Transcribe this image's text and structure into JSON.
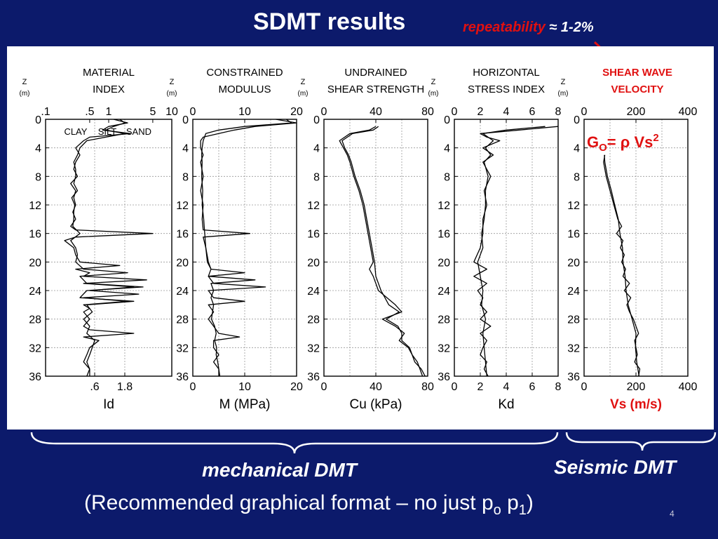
{
  "title": "SDMT results",
  "subtitle": {
    "highlight": "repeatability",
    "rest": " ≈ 1-2%"
  },
  "captions": {
    "mechanical": "mechanical DMT",
    "seismic": "Seismic DMT",
    "footnote_text": "(Recommended graphical format – no just p",
    "footnote_sub1": "o",
    "footnote_mid": " p",
    "footnote_sub2": "1",
    "footnote_end": ")"
  },
  "page_number": "4",
  "colors": {
    "background": "#0c1a6b",
    "accent": "#e01010",
    "panel": "#ffffff",
    "ink": "#000000"
  },
  "chart_data": [
    {
      "type": "line",
      "title_lines": [
        "MATERIAL",
        "INDEX"
      ],
      "xlabel": "Id",
      "axis_scale": "log",
      "xlim": [
        0.1,
        10
      ],
      "top_ticks": [
        {
          "v": 0.1,
          "label": ".1"
        },
        {
          "v": 0.5,
          "label": ".5"
        },
        {
          "v": 1,
          "label": "1"
        },
        {
          "v": 5,
          "label": "5"
        },
        {
          "v": 10,
          "label": "10"
        }
      ],
      "bottom_ticks": [
        {
          "v": 0.6,
          "label": ".6"
        },
        {
          "v": 1.8,
          "label": "1.8"
        }
      ],
      "ref_lines": [
        0.6,
        1.8
      ],
      "zone_labels": [
        {
          "v": 0.3,
          "label": "CLAY"
        },
        {
          "v": 0.95,
          "label": "SILT"
        },
        {
          "v": 3.0,
          "label": "SAND"
        }
      ],
      "ylabel": "Z",
      "yunit": "(m)",
      "ylim": [
        0,
        36
      ],
      "yticks": [
        0,
        4,
        8,
        12,
        16,
        20,
        24,
        28,
        32,
        36
      ],
      "series": [
        {
          "z": [
            0,
            0.5,
            1,
            1.5,
            2,
            2.5,
            3,
            4,
            5,
            6,
            7,
            8,
            9,
            10,
            11,
            12,
            13,
            14,
            15,
            15.5,
            16,
            16.5,
            17,
            18,
            19,
            20,
            20.5,
            21,
            21.5,
            22,
            22.5,
            23,
            23.5,
            24,
            24.5,
            25,
            25.5,
            26,
            26.5,
            27,
            28,
            29,
            29.5,
            30,
            30.5,
            31,
            32,
            33,
            34,
            35,
            36
          ],
          "v": [
            1.2,
            2.0,
            1.0,
            0.8,
            2.2,
            0.5,
            0.4,
            0.3,
            0.35,
            0.3,
            0.28,
            0.32,
            0.25,
            0.3,
            0.28,
            0.3,
            0.27,
            0.3,
            0.25,
            0.3,
            5.0,
            0.3,
            0.2,
            0.28,
            0.3,
            0.35,
            1.5,
            0.3,
            0.5,
            0.4,
            4.0,
            0.4,
            2.5,
            0.5,
            3.0,
            0.4,
            2.0,
            0.4,
            0.5,
            0.4,
            0.5,
            0.4,
            0.5,
            2.5,
            0.4,
            0.7,
            0.5,
            0.45,
            0.4,
            0.5,
            0.45
          ]
        },
        {
          "z": [
            0,
            0.5,
            1,
            1.5,
            2,
            3,
            4,
            5,
            6,
            7,
            8,
            9,
            10,
            11,
            12,
            13,
            14,
            15,
            16,
            17,
            18,
            19,
            20,
            21,
            21.5,
            22,
            23,
            23.5,
            24,
            25,
            25.5,
            26,
            27,
            28,
            29,
            30,
            31,
            32,
            33,
            34,
            35,
            36
          ],
          "v": [
            1.5,
            1.8,
            1.2,
            0.9,
            1.8,
            0.45,
            0.35,
            0.32,
            0.28,
            0.3,
            0.3,
            0.28,
            0.32,
            0.26,
            0.29,
            0.28,
            0.28,
            0.27,
            0.35,
            0.25,
            0.3,
            0.32,
            0.3,
            0.4,
            2.0,
            0.35,
            0.45,
            3.5,
            0.45,
            0.35,
            2.5,
            0.45,
            0.55,
            0.4,
            0.5,
            0.45,
            0.6,
            0.55,
            0.5,
            0.45,
            0.5,
            0.5
          ]
        }
      ]
    },
    {
      "type": "line",
      "title_lines": [
        "CONSTRAINED",
        "MODULUS"
      ],
      "xlabel": "M (MPa)",
      "axis_scale": "linear",
      "xlim": [
        0,
        20
      ],
      "top_ticks": [
        {
          "v": 0,
          "label": "0"
        },
        {
          "v": 10,
          "label": "10"
        },
        {
          "v": 20,
          "label": "20"
        }
      ],
      "bottom_ticks": [
        {
          "v": 0,
          "label": "0"
        },
        {
          "v": 10,
          "label": "10"
        },
        {
          "v": 20,
          "label": "20"
        }
      ],
      "gridlines": [
        5,
        10,
        15
      ],
      "ylabel": "Z",
      "yunit": "(m)",
      "ylim": [
        0,
        36
      ],
      "yticks": [
        0,
        4,
        8,
        12,
        16,
        20,
        24,
        28,
        32,
        36
      ],
      "series": [
        {
          "z": [
            0,
            0.5,
            1,
            1.5,
            2,
            2.5,
            3,
            4,
            5,
            6,
            8,
            10,
            12,
            14,
            15.5,
            16,
            16.5,
            18,
            20,
            21,
            21.5,
            22,
            23,
            23.5,
            24,
            25,
            25.5,
            26,
            27,
            28,
            29,
            30,
            30.5,
            31,
            32,
            33,
            34,
            35,
            36
          ],
          "v": [
            16,
            20,
            12,
            8,
            5,
            2,
            1.5,
            1.5,
            2,
            1.5,
            2,
            1.5,
            2,
            1.8,
            2,
            11,
            2,
            2.5,
            3,
            3.5,
            10,
            3,
            4,
            14,
            3,
            4,
            10,
            3,
            4,
            3,
            4,
            5,
            9,
            4,
            4,
            5,
            4,
            5,
            5
          ]
        },
        {
          "z": [
            0,
            0.5,
            1,
            1.5,
            2,
            3,
            4,
            5,
            6,
            8,
            10,
            12,
            14,
            16,
            18,
            20,
            21,
            22,
            22.5,
            23,
            24,
            25,
            26,
            27,
            28,
            29,
            30,
            31,
            32,
            33,
            34,
            35,
            36
          ],
          "v": [
            18,
            19,
            10,
            5,
            2.5,
            2,
            1.8,
            1.7,
            1.8,
            1.7,
            1.9,
            1.8,
            2.1,
            2.3,
            2.5,
            2.8,
            3.5,
            3,
            12,
            3.5,
            4,
            3.5,
            4,
            3.8,
            3.6,
            4.2,
            4.5,
            4.2,
            4.6,
            4.5,
            4.8,
            5,
            5.2
          ]
        }
      ]
    },
    {
      "type": "line",
      "title_lines": [
        "UNDRAINED",
        "SHEAR STRENGTH"
      ],
      "xlabel": "Cu (kPa)",
      "axis_scale": "linear",
      "xlim": [
        0,
        80
      ],
      "top_ticks": [
        {
          "v": 0,
          "label": "0"
        },
        {
          "v": 40,
          "label": "40"
        },
        {
          "v": 80,
          "label": "80"
        }
      ],
      "bottom_ticks": [
        {
          "v": 0,
          "label": "0"
        },
        {
          "v": 40,
          "label": "40"
        },
        {
          "v": 80,
          "label": "80"
        }
      ],
      "gridlines": [
        20,
        40,
        60
      ],
      "ylabel": "Z",
      "yunit": "(m)",
      "ylim": [
        0,
        36
      ],
      "yticks": [
        0,
        4,
        8,
        12,
        16,
        20,
        24,
        28,
        32,
        36
      ],
      "series": [
        {
          "z": [
            1,
            1.5,
            2,
            3,
            4,
            5,
            6,
            8,
            10,
            12,
            14,
            16,
            18,
            20,
            21,
            22,
            24,
            26,
            27,
            28,
            29,
            30,
            31,
            32,
            33,
            34,
            35,
            36
          ],
          "v": [
            40,
            35,
            20,
            12,
            15,
            18,
            20,
            23,
            27,
            30,
            32,
            34,
            36,
            38,
            35,
            38,
            42,
            55,
            60,
            45,
            55,
            62,
            58,
            65,
            68,
            70,
            75,
            78
          ]
        },
        {
          "z": [
            1,
            1.5,
            2,
            3,
            4,
            5,
            6,
            8,
            10,
            12,
            14,
            16,
            18,
            20,
            22,
            24,
            26,
            27,
            28,
            29,
            30,
            31,
            32,
            33,
            34,
            35,
            36
          ],
          "v": [
            42,
            38,
            22,
            14,
            16,
            19,
            21,
            24,
            28,
            31,
            33,
            35,
            37,
            39,
            40,
            44,
            50,
            58,
            48,
            57,
            60,
            60,
            66,
            68,
            72,
            74,
            76
          ]
        }
      ]
    },
    {
      "type": "line",
      "title_lines": [
        "HORIZONTAL",
        "STRESS INDEX"
      ],
      "xlabel": "Kd",
      "axis_scale": "linear",
      "xlim": [
        0,
        8
      ],
      "top_ticks": [
        {
          "v": 0,
          "label": "0"
        },
        {
          "v": 2,
          "label": "2"
        },
        {
          "v": 4,
          "label": "4"
        },
        {
          "v": 6,
          "label": "6"
        },
        {
          "v": 8,
          "label": "8"
        }
      ],
      "bottom_ticks": [
        {
          "v": 0,
          "label": "0"
        },
        {
          "v": 2,
          "label": "2"
        },
        {
          "v": 4,
          "label": "4"
        },
        {
          "v": 6,
          "label": "6"
        },
        {
          "v": 8,
          "label": "8"
        }
      ],
      "gridlines": [
        2,
        4,
        6
      ],
      "ylabel": "Z",
      "yunit": "(m)",
      "ylim": [
        0,
        36
      ],
      "yticks": [
        0,
        4,
        8,
        12,
        16,
        20,
        24,
        28,
        32,
        36
      ],
      "series": [
        {
          "z": [
            1,
            1.5,
            2,
            2.5,
            3,
            4,
            5,
            6,
            8,
            10,
            12,
            14,
            16,
            18,
            20,
            21,
            22,
            23,
            24,
            25,
            26,
            27,
            28,
            29,
            30,
            31,
            32,
            33,
            34,
            35,
            36
          ],
          "v": [
            8,
            5,
            2,
            2.5,
            3.5,
            2.2,
            3,
            2.2,
            2.8,
            2.3,
            2.5,
            2.2,
            2.2,
            2,
            1.5,
            2.5,
            1.5,
            2.5,
            1.8,
            2.2,
            2,
            2.5,
            2,
            2.8,
            2,
            2.5,
            2.2,
            2,
            2.5,
            2.3,
            2.6
          ]
        },
        {
          "z": [
            1,
            1.5,
            2,
            3,
            4,
            5,
            6,
            8,
            10,
            12,
            14,
            16,
            18,
            20,
            22,
            24,
            26,
            28,
            30,
            32,
            34,
            36
          ],
          "v": [
            7,
            4,
            2.2,
            3,
            2.4,
            2.8,
            2.3,
            2.6,
            2.4,
            2.4,
            2.3,
            2.1,
            2.2,
            1.8,
            2,
            2.2,
            2.1,
            2.4,
            2.2,
            2.3,
            2.4,
            2.5
          ]
        }
      ]
    },
    {
      "type": "line",
      "title_lines": [
        "SHEAR WAVE",
        "VELOCITY"
      ],
      "title_color": "#e01010",
      "xlabel": "Vs (m/s)",
      "xlabel_color": "#e01010",
      "axis_scale": "linear",
      "xlim": [
        0,
        400
      ],
      "top_ticks": [
        {
          "v": 0,
          "label": "0"
        },
        {
          "v": 200,
          "label": "200"
        },
        {
          "v": 400,
          "label": "400"
        }
      ],
      "bottom_ticks": [
        {
          "v": 0,
          "label": "0"
        },
        {
          "v": 200,
          "label": "200"
        },
        {
          "v": 400,
          "label": "400"
        }
      ],
      "gridlines": [
        100,
        200,
        300
      ],
      "ylabel": "Z",
      "yunit": "(m)",
      "ylim": [
        0,
        36
      ],
      "yticks": [
        0,
        4,
        8,
        12,
        16,
        20,
        24,
        28,
        32,
        36
      ],
      "annotation": {
        "G": "G",
        "sub": "O",
        "rest": "= ρ Vs",
        "sup": "2"
      },
      "series": [
        {
          "z": [
            5,
            6,
            8,
            10,
            12,
            14,
            15,
            16,
            17,
            18,
            19,
            20,
            21,
            22,
            23,
            24,
            25,
            26,
            27,
            28,
            29,
            30,
            31,
            32,
            33,
            34,
            35,
            36
          ],
          "v": [
            80,
            75,
            85,
            100,
            115,
            130,
            145,
            125,
            150,
            140,
            155,
            145,
            160,
            150,
            175,
            155,
            180,
            165,
            175,
            190,
            200,
            210,
            195,
            200,
            205,
            195,
            215,
            210
          ]
        },
        {
          "z": [
            5,
            6,
            8,
            10,
            12,
            14,
            16,
            18,
            20,
            22,
            24,
            26,
            28,
            30,
            32,
            34,
            36
          ],
          "v": [
            78,
            80,
            90,
            105,
            118,
            132,
            138,
            148,
            150,
            158,
            162,
            170,
            185,
            200,
            198,
            203,
            212
          ]
        }
      ]
    }
  ]
}
